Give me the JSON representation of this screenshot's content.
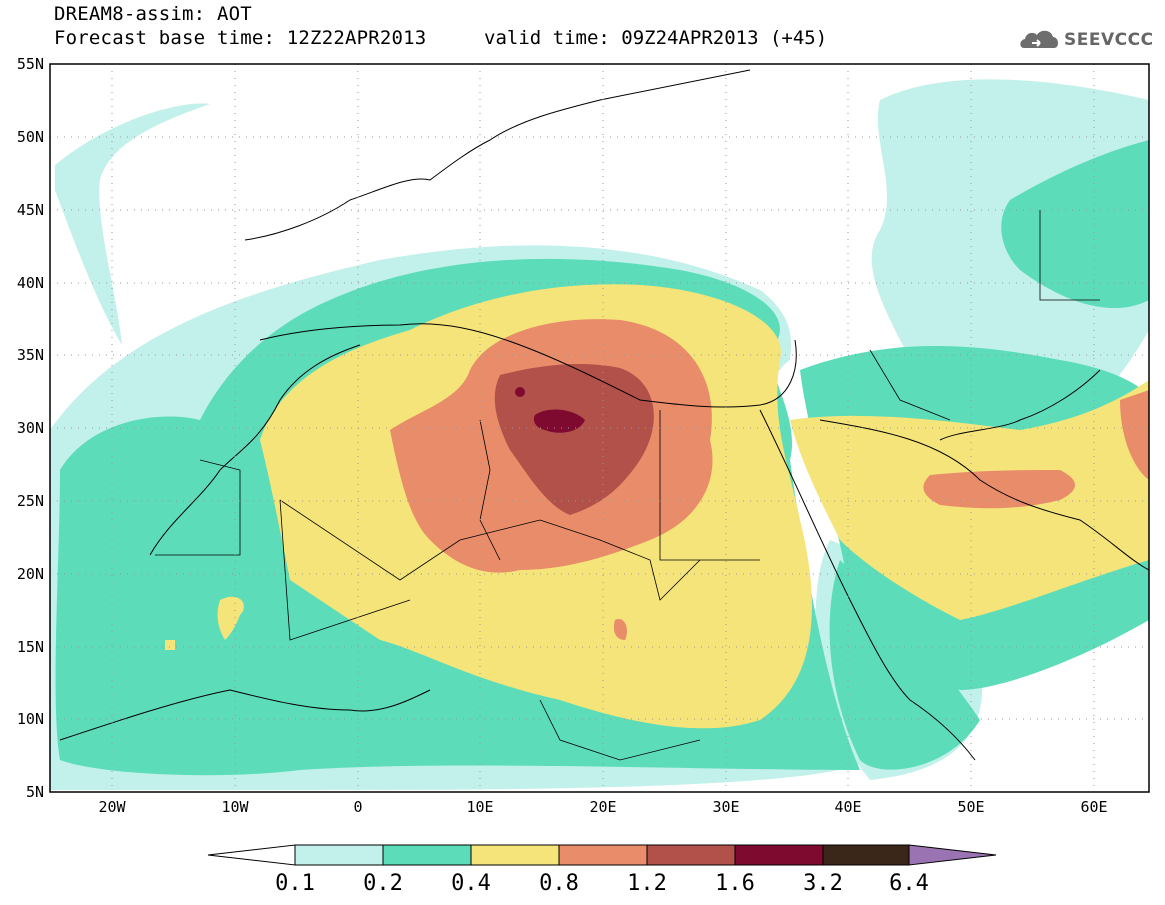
{
  "header": {
    "line1": "DREAM8-assim: AOT",
    "line2": "Forecast base time: 12Z22APR2013",
    "valid": "valid time: 09Z24APR2013 (+45)",
    "logo_text": "SEEVCCC",
    "logo_icon": "cloud-logo-icon"
  },
  "map": {
    "lat_labels": [
      "55N",
      "50N",
      "45N",
      "40N",
      "35N",
      "30N",
      "25N",
      "20N",
      "15N",
      "10N",
      "5N"
    ],
    "lon_labels": [
      "20W",
      "10W",
      "0",
      "10E",
      "20E",
      "30E",
      "40E",
      "50E",
      "60E"
    ],
    "colors": {
      "c01": "#c2f0ea",
      "c02": "#5ddcb9",
      "c04": "#f5e47a",
      "c08": "#e88c6a",
      "c12": "#b2504a",
      "c16": "#7e0a30",
      "c32": "#3b2719",
      "c64": "#9a74b2"
    }
  },
  "colorbar": {
    "labels": [
      "0.1",
      "0.2",
      "0.4",
      "0.8",
      "1.2",
      "1.6",
      "3.2",
      "6.4"
    ]
  }
}
